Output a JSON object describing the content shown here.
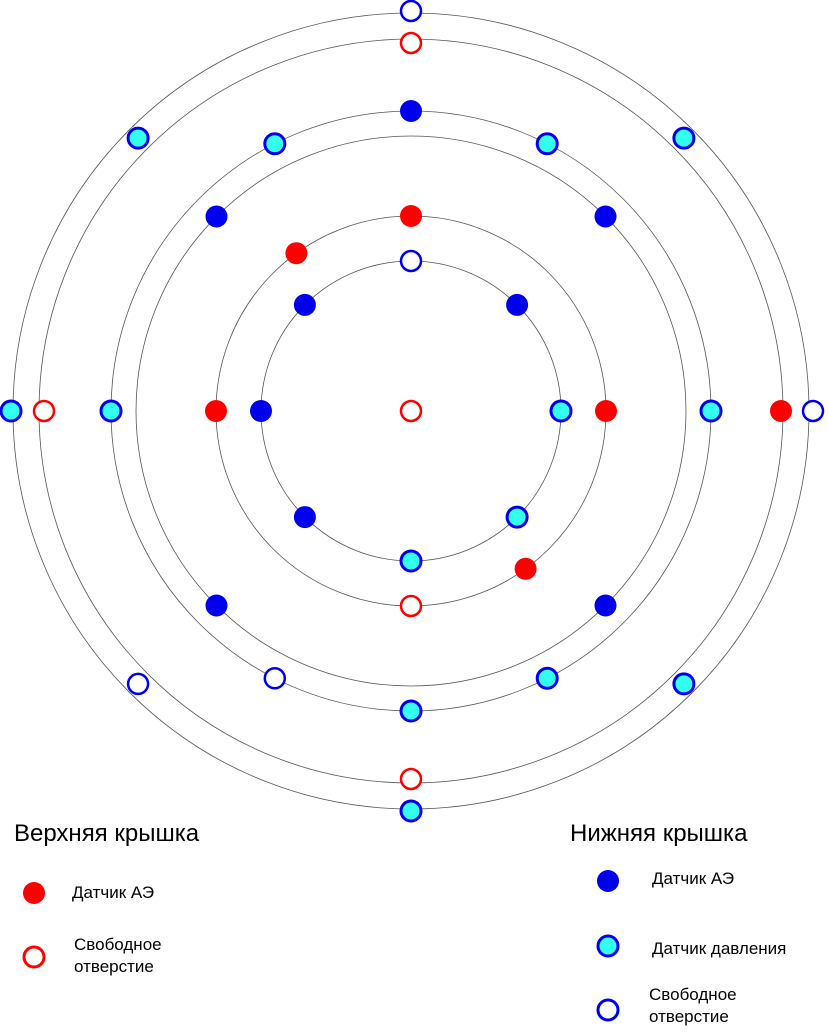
{
  "colors": {
    "ring_stroke": "#555555",
    "red": "#ff0000",
    "blue": "#0000ee",
    "cyan": "#33ffee",
    "white": "#ffffff"
  },
  "rings": [
    {
      "id": "r1",
      "radius_mm": 150
    },
    {
      "id": "r2",
      "radius_mm": 195
    },
    {
      "id": "r3",
      "radius_mm": 275
    },
    {
      "id": "r4",
      "radius_mm": 300
    },
    {
      "id": "r5",
      "radius_mm": 372
    },
    {
      "id": "r6",
      "radius_mm": 398
    }
  ],
  "holes": [
    {
      "type": "top-free",
      "ring": 0,
      "angle": 0
    },
    {
      "type": "top-ae",
      "ring": 2,
      "angle": 90
    },
    {
      "type": "top-ae",
      "ring": 2,
      "angle": 180
    },
    {
      "type": "top-ae",
      "ring": 2,
      "angle": 0
    },
    {
      "type": "top-ae",
      "ring": 2,
      "angle": 306
    },
    {
      "type": "top-ae",
      "ring": 2,
      "angle": 126
    },
    {
      "type": "top-ae",
      "ring": 5,
      "angle": 0
    },
    {
      "type": "top-free",
      "ring": 2,
      "angle": 270
    },
    {
      "type": "top-free",
      "ring": 5,
      "angle": 90
    },
    {
      "type": "top-free",
      "ring": 5,
      "angle": 180
    },
    {
      "type": "top-free",
      "ring": 5,
      "angle": 270
    },
    {
      "type": "bot-ae",
      "ring": 4,
      "angle": 90
    },
    {
      "type": "bot-ae",
      "ring": 1,
      "angle": 180
    },
    {
      "type": "bot-ae",
      "ring": 1,
      "angle": 135
    },
    {
      "type": "bot-ae",
      "ring": 1,
      "angle": 45
    },
    {
      "type": "bot-ae",
      "ring": 1,
      "angle": 225
    },
    {
      "type": "bot-ae",
      "ring": 3,
      "angle": 135
    },
    {
      "type": "bot-ae",
      "ring": 3,
      "angle": 45
    },
    {
      "type": "bot-ae",
      "ring": 3,
      "angle": 225
    },
    {
      "type": "bot-ae",
      "ring": 3,
      "angle": 315
    },
    {
      "type": "bot-press",
      "ring": 1,
      "angle": 0
    },
    {
      "type": "bot-press",
      "ring": 1,
      "angle": 270
    },
    {
      "type": "bot-press",
      "ring": 1,
      "angle": 315
    },
    {
      "type": "bot-press",
      "ring": 4,
      "angle": 0
    },
    {
      "type": "bot-press",
      "ring": 4,
      "angle": 180
    },
    {
      "type": "bot-press",
      "ring": 4,
      "angle": 270
    },
    {
      "type": "bot-press",
      "ring": 4,
      "angle": 63
    },
    {
      "type": "bot-press",
      "ring": 4,
      "angle": 117
    },
    {
      "type": "bot-press",
      "ring": 4,
      "angle": 297
    },
    {
      "type": "bot-press",
      "ring": 5.5,
      "angle": 45
    },
    {
      "type": "bot-press",
      "ring": 5.5,
      "angle": 135
    },
    {
      "type": "bot-press",
      "ring": 5.5,
      "angle": 315
    },
    {
      "type": "bot-press",
      "ring": 6.5,
      "angle": 180
    },
    {
      "type": "bot-press",
      "ring": 6.5,
      "angle": 270
    },
    {
      "type": "bot-free",
      "ring": 1,
      "angle": 90
    },
    {
      "type": "bot-free",
      "ring": 4,
      "angle": 243
    },
    {
      "type": "bot-free",
      "ring": 5.5,
      "angle": 225
    },
    {
      "type": "bot-free",
      "ring": 6.5,
      "angle": 90
    },
    {
      "type": "bot-free",
      "ring": 6.5,
      "angle": 0
    }
  ],
  "legend": {
    "top": {
      "title": "Верхняя крышка",
      "ae_label": "Датчик АЭ",
      "free_label_line1": "Свободное",
      "free_label_line2": "отверстие"
    },
    "bottom": {
      "title": "Нижняя крышка",
      "ae_label": "Датчик АЭ",
      "pressure_label": "Датчик давления",
      "free_label_line1": "Свободное",
      "free_label_line2": "отверстие"
    }
  }
}
